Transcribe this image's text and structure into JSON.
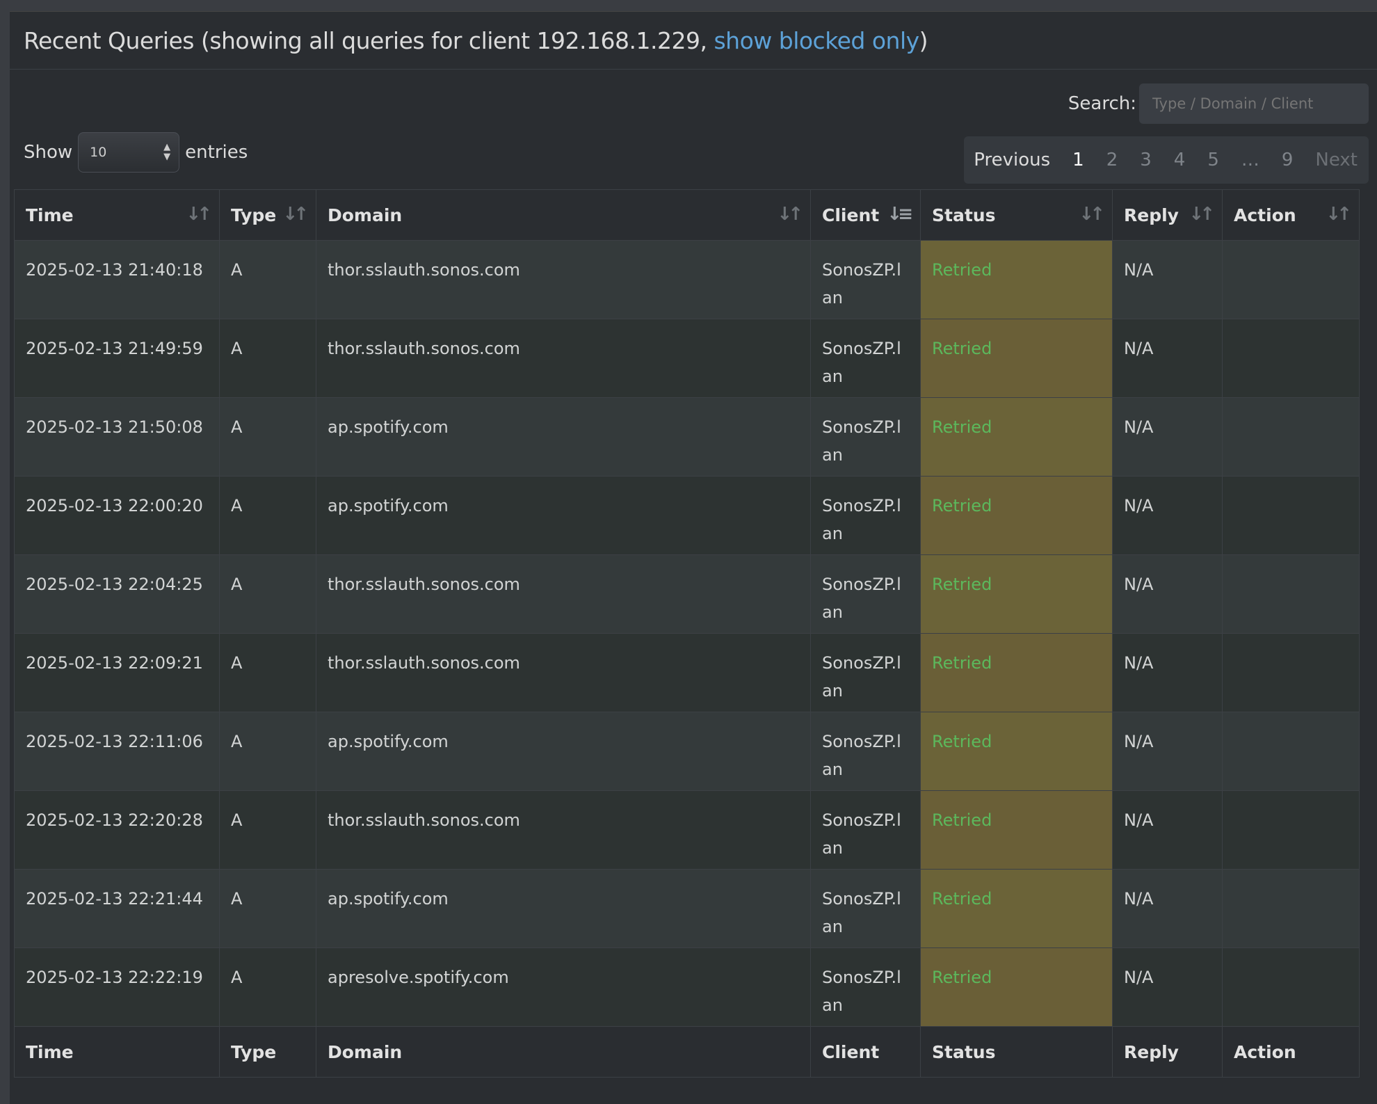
{
  "header": {
    "title_prefix": "Recent Queries (showing all queries for client 192.168.1.229, ",
    "link": "show blocked only",
    "title_suffix": ")"
  },
  "search": {
    "label": "Search:",
    "placeholder": "Type / Domain / Client"
  },
  "length": {
    "show": "Show",
    "value": "10",
    "entries": "entries"
  },
  "pagination": {
    "previous": "Previous",
    "pages": [
      "1",
      "2",
      "3",
      "4",
      "5",
      "…",
      "9"
    ],
    "current": "1",
    "next": "Next"
  },
  "columns": [
    "Time",
    "Type",
    "Domain",
    "Client",
    "Status",
    "Reply",
    "Action"
  ],
  "rows": [
    {
      "time": "2025-02-13 21:40:18",
      "type": "A",
      "domain": "thor.sslauth.sonos.com",
      "client": "SonosZP.lan",
      "status": "Retried",
      "reply": "N/A",
      "action": ""
    },
    {
      "time": "2025-02-13 21:49:59",
      "type": "A",
      "domain": "thor.sslauth.sonos.com",
      "client": "SonosZP.lan",
      "status": "Retried",
      "reply": "N/A",
      "action": ""
    },
    {
      "time": "2025-02-13 21:50:08",
      "type": "A",
      "domain": "ap.spotify.com",
      "client": "SonosZP.lan",
      "status": "Retried",
      "reply": "N/A",
      "action": ""
    },
    {
      "time": "2025-02-13 22:00:20",
      "type": "A",
      "domain": "ap.spotify.com",
      "client": "SonosZP.lan",
      "status": "Retried",
      "reply": "N/A",
      "action": ""
    },
    {
      "time": "2025-02-13 22:04:25",
      "type": "A",
      "domain": "thor.sslauth.sonos.com",
      "client": "SonosZP.lan",
      "status": "Retried",
      "reply": "N/A",
      "action": ""
    },
    {
      "time": "2025-02-13 22:09:21",
      "type": "A",
      "domain": "thor.sslauth.sonos.com",
      "client": "SonosZP.lan",
      "status": "Retried",
      "reply": "N/A",
      "action": ""
    },
    {
      "time": "2025-02-13 22:11:06",
      "type": "A",
      "domain": "ap.spotify.com",
      "client": "SonosZP.lan",
      "status": "Retried",
      "reply": "N/A",
      "action": ""
    },
    {
      "time": "2025-02-13 22:20:28",
      "type": "A",
      "domain": "thor.sslauth.sonos.com",
      "client": "SonosZP.lan",
      "status": "Retried",
      "reply": "N/A",
      "action": ""
    },
    {
      "time": "2025-02-13 22:21:44",
      "type": "A",
      "domain": "ap.spotify.com",
      "client": "SonosZP.lan",
      "status": "Retried",
      "reply": "N/A",
      "action": ""
    },
    {
      "time": "2025-02-13 22:22:19",
      "type": "A",
      "domain": "apresolve.spotify.com",
      "client": "SonosZP.lan",
      "status": "Retried",
      "reply": "N/A",
      "action": ""
    }
  ],
  "colors": {
    "link": "#5da2d8",
    "status_text": "#5cb85c",
    "status_bg": "#6b6338",
    "panel_bg": "#2a2d31"
  }
}
